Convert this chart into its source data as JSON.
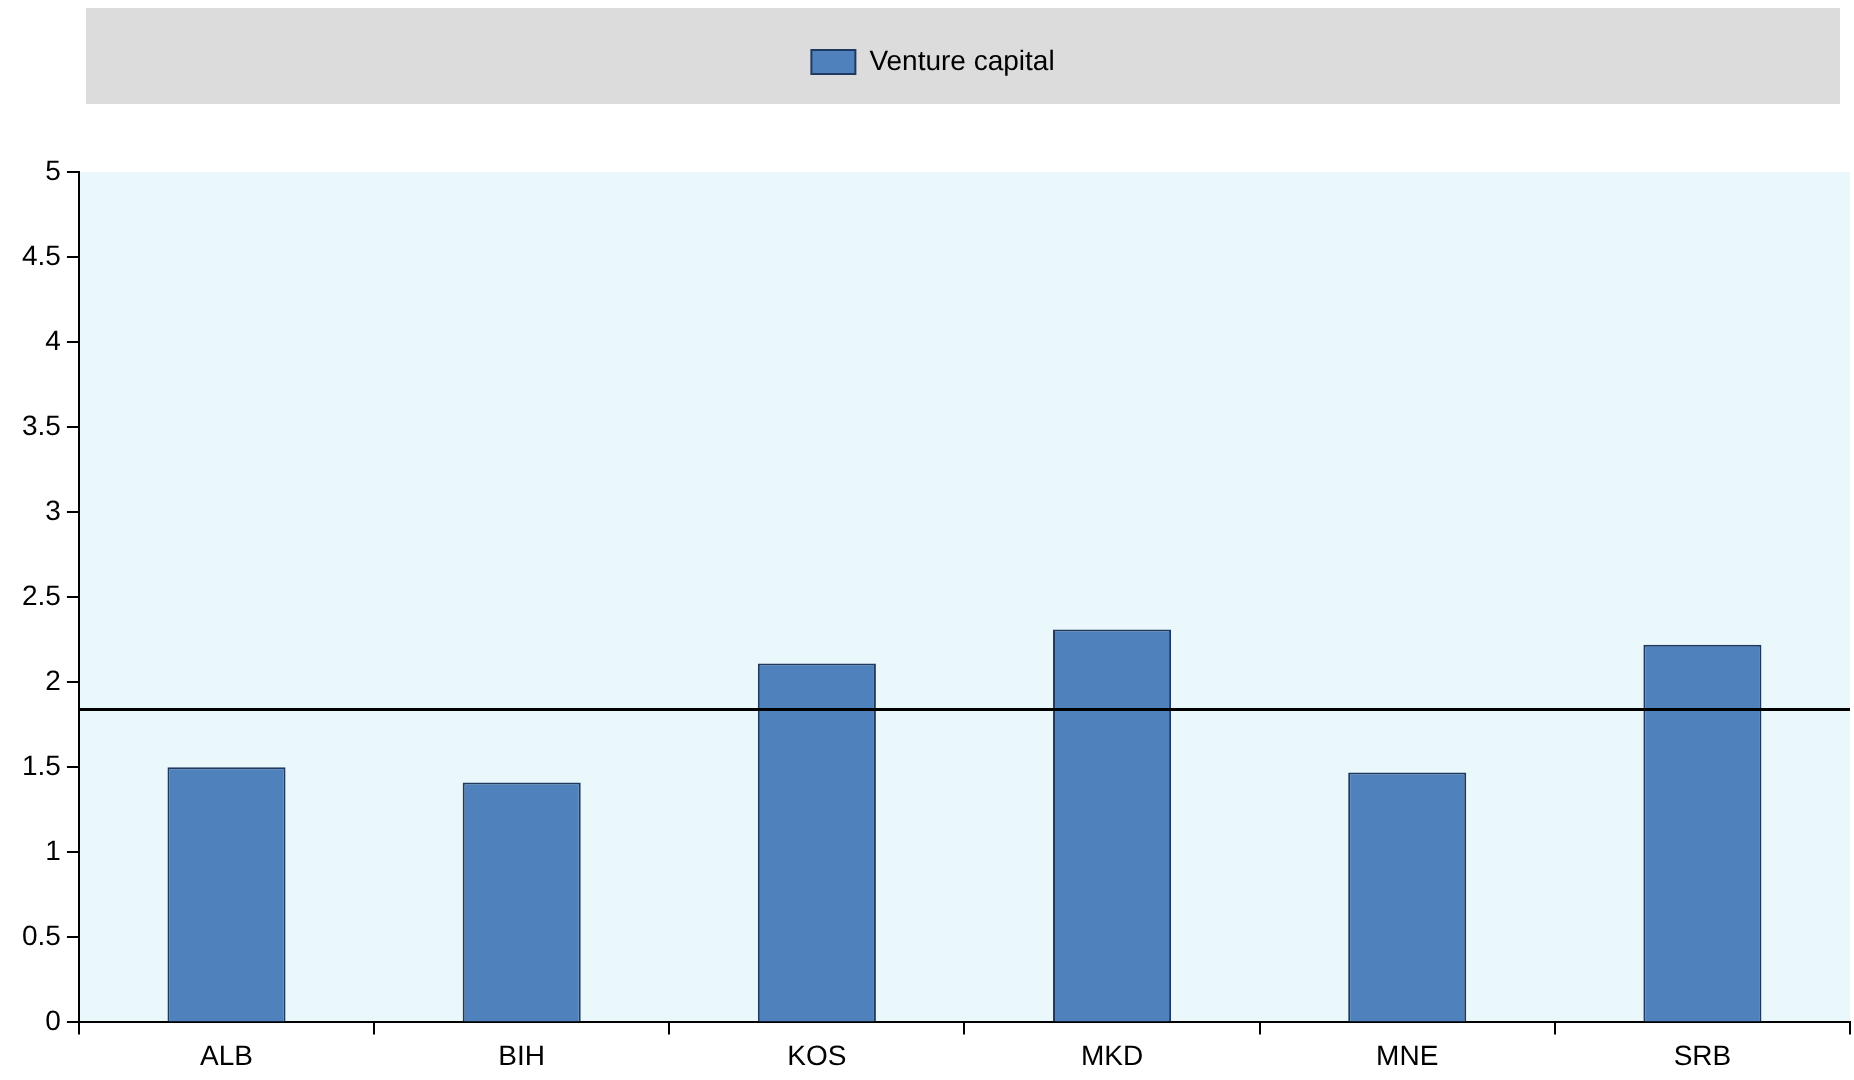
{
  "chart_data": {
    "type": "bar",
    "categories": [
      "ALB",
      "BIH",
      "KOS",
      "MKD",
      "MNE",
      "SRB"
    ],
    "series": [
      {
        "name": "Venture capital",
        "color": "#4f81bd",
        "values": [
          1.5,
          1.41,
          2.11,
          2.31,
          1.47,
          2.22
        ]
      }
    ],
    "ylim": [
      0,
      5
    ],
    "yticks": [
      0,
      0.5,
      1,
      1.5,
      2,
      2.5,
      3,
      3.5,
      4,
      4.5,
      5
    ],
    "grid": false,
    "legend": "top",
    "ref_lines": [
      {
        "axis": "y",
        "value": 1.84,
        "color": "#000000"
      }
    ]
  }
}
